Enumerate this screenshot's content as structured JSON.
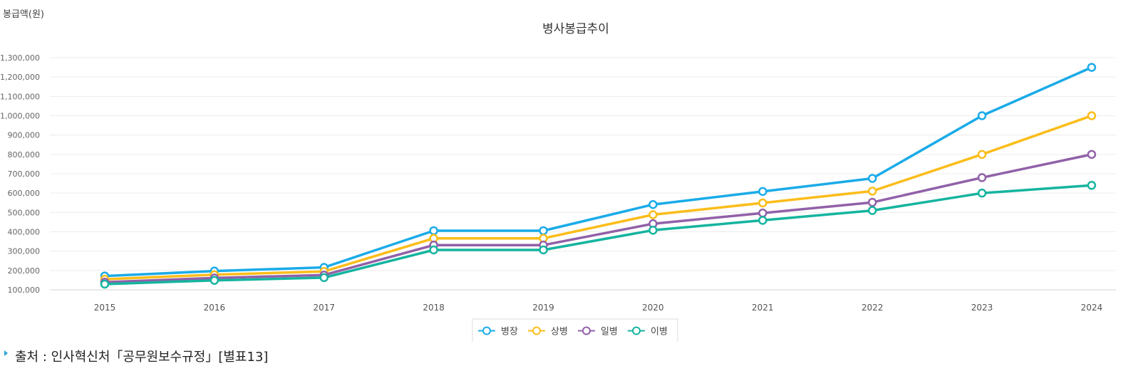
{
  "chart_data": {
    "type": "line",
    "title": "병사봉급추이",
    "ylabel": "봉급액(원)",
    "xlabel": "",
    "ylim": [
      100000,
      1300000
    ],
    "yticks": [
      "100,000",
      "200,000",
      "300,000",
      "400,000",
      "500,000",
      "600,000",
      "700,000",
      "800,000",
      "900,000",
      "1,000,000",
      "1,100,000",
      "1,200,000",
      "1,300,000"
    ],
    "categories": [
      "2015",
      "2016",
      "2017",
      "2018",
      "2019",
      "2020",
      "2021",
      "2022",
      "2023",
      "2024"
    ],
    "grid": true,
    "legend_position": "bottom-center",
    "series": [
      {
        "name": "병장",
        "color": "#1aabe8",
        "values": [
          171400,
          197000,
          216000,
          405700,
          405700,
          540900,
          608500,
          676100,
          1000000,
          1250000
        ]
      },
      {
        "name": "상병",
        "color": "#fbbd1a",
        "values": [
          154800,
          178000,
          195000,
          366200,
          366200,
          488200,
          549200,
          610200,
          800000,
          1000000
        ]
      },
      {
        "name": "일병",
        "color": "#9161a8",
        "values": [
          139800,
          161000,
          176400,
          331300,
          331300,
          441700,
          496900,
          552100,
          680000,
          800000
        ]
      },
      {
        "name": "이병",
        "color": "#15b49f",
        "values": [
          129400,
          149000,
          163000,
          306100,
          306100,
          408100,
          459100,
          510100,
          600000,
          640000
        ]
      }
    ]
  },
  "source": {
    "text": "출처 : 인사혁신처「공무원보수규정」[별표13]"
  }
}
